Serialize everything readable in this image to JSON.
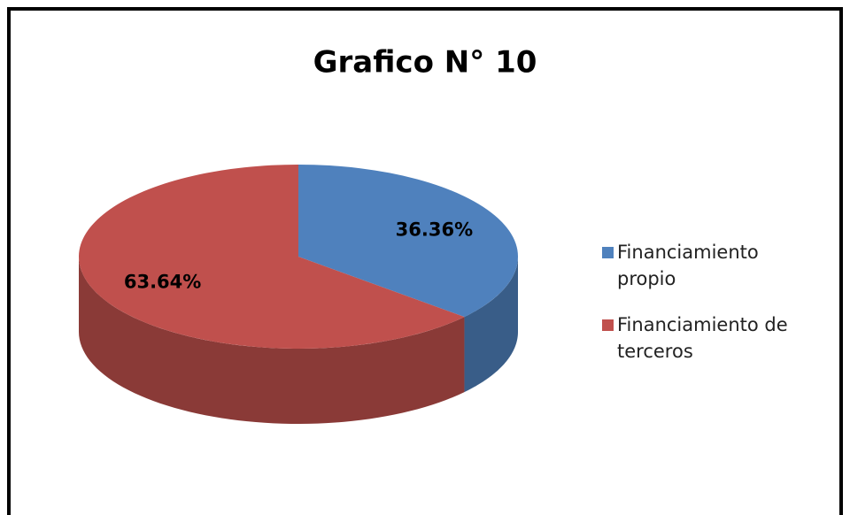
{
  "chart_data": {
    "type": "pie",
    "title": "Grafico  N° 10",
    "categories": [
      "Financiamiento propio",
      "Financiamiento de terceros"
    ],
    "values": [
      36.36,
      63.64
    ],
    "value_labels": [
      "36.36%",
      "63.64%"
    ],
    "colors": [
      "#4f81bd",
      "#c0504d"
    ],
    "legend": "right"
  }
}
